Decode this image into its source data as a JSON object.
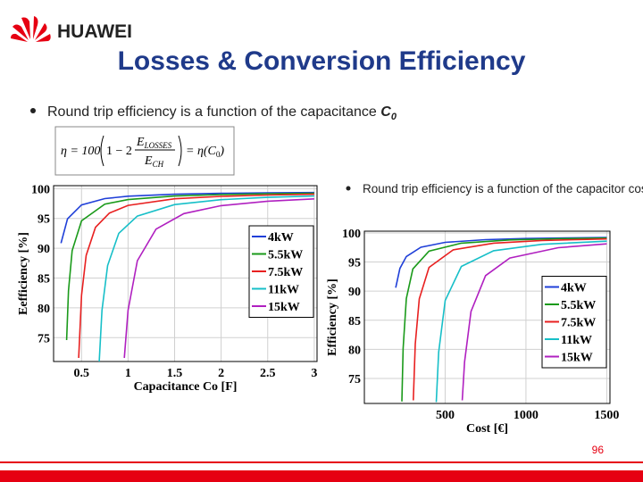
{
  "header": {
    "logo_text": "HUAWEI",
    "title": "Losses & Conversion Efficiency"
  },
  "bullets": [
    {
      "text": "Round trip efficiency is a function of the capacitance ",
      "symbol": "C",
      "symbol_sub": "0"
    },
    {
      "text": "Round trip efficiency is a function of the capacitor cost"
    }
  ],
  "formula": {
    "lhs": "η = 100",
    "inner": "1 − 2",
    "num_main": "E",
    "num_sub": "LOSSES",
    "den_main": "E",
    "den_sub": "CH",
    "rhs_main": "= η(C",
    "rhs_sub": "0",
    "rhs_end": ")"
  },
  "chart_data": [
    {
      "type": "line",
      "x_label": "Capacitance Co [F]",
      "y_label": "Eefficiency [%]",
      "xlim": [
        0.2,
        3.03
      ],
      "ylim": [
        71,
        100.5
      ],
      "xticks": [
        0.5,
        1,
        1.5,
        2,
        2.5,
        3
      ],
      "yticks": [
        75,
        80,
        85,
        90,
        95,
        100
      ],
      "grid": true,
      "legend": "center right",
      "series": [
        {
          "name": "4kW",
          "color": "#1f3fd8",
          "x": [
            0.28,
            0.35,
            0.5,
            0.75,
            1,
            1.5,
            2,
            2.5,
            3
          ],
          "values": [
            90.85,
            94.93,
            97.27,
            98.33,
            98.73,
            99.06,
            99.21,
            99.3,
            99.35
          ]
        },
        {
          "name": "5.5kW",
          "color": "#1a9a1a",
          "x": [
            0.34,
            0.36,
            0.4,
            0.5,
            0.75,
            1,
            1.5,
            2,
            2.5,
            3
          ],
          "values": [
            74.6,
            82.9,
            89.6,
            94.6,
            97.4,
            98.17,
            98.77,
            99.01,
            99.15,
            99.23
          ]
        },
        {
          "name": "7.5kW",
          "color": "#e82020",
          "x": [
            0.47,
            0.5,
            0.55,
            0.65,
            0.8,
            1,
            1.5,
            2,
            2.5,
            3
          ],
          "values": [
            71.6,
            82.1,
            88.8,
            93.5,
            95.9,
            97.19,
            98.3,
            98.71,
            98.93,
            99.06
          ]
        },
        {
          "name": "11kW",
          "color": "#17bfc8",
          "x": [
            0.69,
            0.72,
            0.78,
            0.9,
            1.1,
            1.5,
            2,
            2.5,
            3
          ],
          "values": [
            71.0,
            79.6,
            87.1,
            92.5,
            95.4,
            97.33,
            98.15,
            98.54,
            98.76
          ]
        },
        {
          "name": "15kW",
          "color": "#b020c0",
          "x": [
            0.96,
            1.0,
            1.1,
            1.3,
            1.6,
            2,
            2.5,
            3
          ],
          "values": [
            71.6,
            79.6,
            87.9,
            93.2,
            95.82,
            97.14,
            97.89,
            98.29
          ]
        }
      ]
    },
    {
      "type": "line",
      "x_label": "Cost [€]",
      "y_label": "Efficiency [%]",
      "xlim": [
        0,
        1520
      ],
      "ylim": [
        70.7,
        100.3
      ],
      "xticks": [
        500,
        1000,
        1500
      ],
      "yticks": [
        75,
        80,
        85,
        90,
        95,
        100
      ],
      "grid": true,
      "legend": "lower right",
      "series": [
        {
          "name": "4kW",
          "color": "#1f3fd8",
          "x": [
            194,
            220,
            260,
            350,
            500,
            750,
            1000,
            1250,
            1500
          ],
          "values": [
            90.59,
            93.9,
            95.94,
            97.54,
            98.38,
            98.85,
            99.04,
            99.14,
            99.21
          ]
        },
        {
          "name": "5.5kW",
          "color": "#1a9a1a",
          "x": [
            232,
            240,
            260,
            300,
            400,
            600,
            900,
            1200,
            1500
          ],
          "values": [
            71.03,
            80.14,
            88.74,
            93.81,
            96.88,
            98.24,
            98.79,
            99.01,
            99.12
          ]
        },
        {
          "name": "7.5kW",
          "color": "#e82020",
          "x": [
            303,
            315,
            340,
            400,
            550,
            800,
            1100,
            1500
          ],
          "values": [
            71.24,
            80.93,
            88.67,
            94.08,
            97.09,
            98.25,
            98.71,
            98.97
          ]
        },
        {
          "name": "11kW",
          "color": "#17bfc8",
          "x": [
            445,
            460,
            500,
            600,
            800,
            1100,
            1500
          ],
          "values": [
            70.93,
            79.5,
            88.39,
            94.24,
            96.94,
            98.05,
            98.58
          ]
        },
        {
          "name": "15kW",
          "color": "#b020c0",
          "x": [
            606,
            620,
            660,
            750,
            900,
            1200,
            1500
          ],
          "values": [
            71.24,
            77.83,
            86.5,
            92.66,
            95.68,
            97.47,
            98.12
          ]
        }
      ]
    }
  ],
  "page_number": "96"
}
